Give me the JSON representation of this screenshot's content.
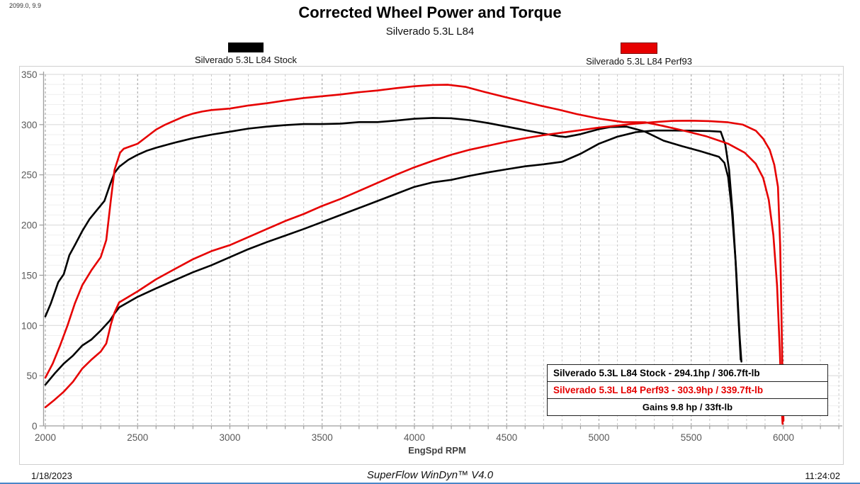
{
  "header": {
    "doc_ref": "2099.0, 9.9",
    "title": "Corrected Wheel Power and Torque",
    "subtitle": "Silverado 5.3L L84"
  },
  "legend": {
    "stock": {
      "label": "Silverado 5.3L L84 Stock",
      "color": "#000000"
    },
    "perf": {
      "label": "Silverado 5.3L L84 Perf93",
      "color": "#e60000"
    }
  },
  "chart_data": {
    "type": "line",
    "title": "Corrected Wheel Power and Torque",
    "subtitle": "Silverado 5.3L L84",
    "xlabel": "EngSpd RPM",
    "ylabel": "",
    "xlim": [
      2000,
      6000
    ],
    "ylim": [
      0,
      350
    ],
    "x_ticks": [
      2000,
      2500,
      3000,
      3500,
      4000,
      4500,
      5000,
      5500,
      6000
    ],
    "y_ticks": [
      0,
      50,
      100,
      150,
      200,
      250,
      300,
      350
    ],
    "grid": {
      "x_minor_step": 100,
      "x_major_step": 500,
      "y_minor_step": 10,
      "y_major_step": 50,
      "grid_on": true
    },
    "legend_position": "top",
    "series": [
      {
        "name": "Stock Torque (ft-lb)",
        "color": "#000000",
        "points": [
          [
            2000,
            109
          ],
          [
            2030,
            122
          ],
          [
            2070,
            143
          ],
          [
            2100,
            151
          ],
          [
            2130,
            170
          ],
          [
            2160,
            180
          ],
          [
            2200,
            194
          ],
          [
            2240,
            206
          ],
          [
            2280,
            215
          ],
          [
            2320,
            224
          ],
          [
            2350,
            240
          ],
          [
            2375,
            252
          ],
          [
            2400,
            258
          ],
          [
            2450,
            265
          ],
          [
            2500,
            270
          ],
          [
            2550,
            274
          ],
          [
            2600,
            277
          ],
          [
            2700,
            282
          ],
          [
            2800,
            286.5
          ],
          [
            2900,
            290
          ],
          [
            3000,
            293
          ],
          [
            3100,
            296
          ],
          [
            3200,
            298
          ],
          [
            3300,
            299.5
          ],
          [
            3400,
            300.5
          ],
          [
            3500,
            300.5
          ],
          [
            3600,
            301
          ],
          [
            3700,
            302.5
          ],
          [
            3800,
            302.5
          ],
          [
            3900,
            304
          ],
          [
            4000,
            305.8
          ],
          [
            4100,
            306.7
          ],
          [
            4200,
            306.3
          ],
          [
            4300,
            304.5
          ],
          [
            4400,
            301.5
          ],
          [
            4500,
            298
          ],
          [
            4600,
            294.5
          ],
          [
            4700,
            291
          ],
          [
            4780,
            288.5
          ],
          [
            4820,
            287.7
          ],
          [
            4900,
            290.5
          ],
          [
            5000,
            295.5
          ],
          [
            5060,
            297.6
          ],
          [
            5150,
            298
          ],
          [
            5250,
            293
          ],
          [
            5350,
            284
          ],
          [
            5450,
            278.5
          ],
          [
            5550,
            273.5
          ],
          [
            5650,
            268
          ],
          [
            5680,
            262
          ],
          [
            5700,
            248
          ],
          [
            5720,
            215
          ],
          [
            5740,
            165
          ],
          [
            5755,
            110
          ],
          [
            5768,
            66
          ]
        ]
      },
      {
        "name": "Stock Power (hp)",
        "color": "#000000",
        "points": [
          [
            2000,
            41
          ],
          [
            2050,
            52
          ],
          [
            2100,
            62
          ],
          [
            2150,
            70
          ],
          [
            2200,
            80
          ],
          [
            2250,
            86
          ],
          [
            2300,
            95
          ],
          [
            2350,
            105
          ],
          [
            2375,
            112
          ],
          [
            2400,
            118
          ],
          [
            2500,
            128.5
          ],
          [
            2600,
            137
          ],
          [
            2700,
            145
          ],
          [
            2800,
            153
          ],
          [
            2900,
            160
          ],
          [
            3000,
            168
          ],
          [
            3100,
            176
          ],
          [
            3200,
            183
          ],
          [
            3300,
            189.5
          ],
          [
            3400,
            196
          ],
          [
            3500,
            203
          ],
          [
            3600,
            210
          ],
          [
            3700,
            217
          ],
          [
            3800,
            224
          ],
          [
            3900,
            231
          ],
          [
            4000,
            238
          ],
          [
            4100,
            242.5
          ],
          [
            4200,
            245
          ],
          [
            4300,
            249
          ],
          [
            4400,
            252.5
          ],
          [
            4500,
            255.5
          ],
          [
            4600,
            258.5
          ],
          [
            4700,
            260.5
          ],
          [
            4800,
            263
          ],
          [
            4900,
            271
          ],
          [
            5000,
            281
          ],
          [
            5100,
            288
          ],
          [
            5200,
            292.5
          ],
          [
            5300,
            294.1
          ],
          [
            5400,
            294.1
          ],
          [
            5500,
            294
          ],
          [
            5600,
            293.6
          ],
          [
            5660,
            293
          ],
          [
            5685,
            280
          ],
          [
            5705,
            255
          ],
          [
            5725,
            210
          ],
          [
            5745,
            150
          ],
          [
            5762,
            90
          ],
          [
            5772,
            64
          ]
        ]
      },
      {
        "name": "Perf93 Torque (ft-lb)",
        "color": "#e60000",
        "points": [
          [
            2000,
            48
          ],
          [
            2040,
            62
          ],
          [
            2080,
            80
          ],
          [
            2120,
            100
          ],
          [
            2160,
            122
          ],
          [
            2200,
            140
          ],
          [
            2250,
            155
          ],
          [
            2300,
            168
          ],
          [
            2330,
            185
          ],
          [
            2355,
            225
          ],
          [
            2375,
            255
          ],
          [
            2405,
            272
          ],
          [
            2425,
            276
          ],
          [
            2500,
            281
          ],
          [
            2550,
            288
          ],
          [
            2600,
            295
          ],
          [
            2650,
            300
          ],
          [
            2700,
            304
          ],
          [
            2750,
            308
          ],
          [
            2800,
            311
          ],
          [
            2850,
            313
          ],
          [
            2900,
            314.5
          ],
          [
            3000,
            316
          ],
          [
            3100,
            319
          ],
          [
            3200,
            321.3
          ],
          [
            3300,
            324
          ],
          [
            3400,
            326.5
          ],
          [
            3500,
            328.3
          ],
          [
            3600,
            330
          ],
          [
            3700,
            332.3
          ],
          [
            3800,
            334
          ],
          [
            3900,
            336.3
          ],
          [
            4000,
            338.2
          ],
          [
            4100,
            339.5
          ],
          [
            4180,
            339.7
          ],
          [
            4280,
            337.5
          ],
          [
            4380,
            332.5
          ],
          [
            4480,
            328
          ],
          [
            4580,
            323.5
          ],
          [
            4680,
            319
          ],
          [
            4780,
            315
          ],
          [
            4880,
            310.5
          ],
          [
            5000,
            306
          ],
          [
            5130,
            302.5
          ],
          [
            5252,
            302.3
          ],
          [
            5340,
            299
          ],
          [
            5460,
            294
          ],
          [
            5580,
            288.5
          ],
          [
            5700,
            281
          ],
          [
            5790,
            272
          ],
          [
            5850,
            261
          ],
          [
            5890,
            247
          ],
          [
            5920,
            225
          ],
          [
            5945,
            190
          ],
          [
            5965,
            140
          ],
          [
            5980,
            75
          ],
          [
            5990,
            20
          ],
          [
            5995,
            2
          ]
        ]
      },
      {
        "name": "Perf93 Power (hp)",
        "color": "#e60000",
        "points": [
          [
            2000,
            18.5
          ],
          [
            2050,
            26
          ],
          [
            2100,
            34
          ],
          [
            2150,
            44
          ],
          [
            2200,
            57
          ],
          [
            2250,
            66
          ],
          [
            2300,
            74
          ],
          [
            2330,
            82
          ],
          [
            2355,
            101
          ],
          [
            2375,
            113
          ],
          [
            2400,
            123
          ],
          [
            2500,
            134
          ],
          [
            2600,
            146
          ],
          [
            2700,
            156
          ],
          [
            2800,
            166
          ],
          [
            2900,
            174
          ],
          [
            3000,
            180
          ],
          [
            3100,
            188
          ],
          [
            3200,
            196
          ],
          [
            3300,
            204
          ],
          [
            3400,
            211
          ],
          [
            3500,
            219
          ],
          [
            3600,
            226
          ],
          [
            3700,
            234
          ],
          [
            3800,
            242
          ],
          [
            3900,
            250
          ],
          [
            4000,
            257.5
          ],
          [
            4100,
            264
          ],
          [
            4200,
            270
          ],
          [
            4300,
            275
          ],
          [
            4400,
            279
          ],
          [
            4500,
            283
          ],
          [
            4600,
            286.5
          ],
          [
            4700,
            289.5
          ],
          [
            4800,
            292
          ],
          [
            4900,
            294.5
          ],
          [
            5000,
            297
          ],
          [
            5100,
            299
          ],
          [
            5200,
            301
          ],
          [
            5300,
            302.5
          ],
          [
            5400,
            303.7
          ],
          [
            5500,
            303.9
          ],
          [
            5600,
            303.5
          ],
          [
            5700,
            302.3
          ],
          [
            5780,
            300
          ],
          [
            5850,
            294
          ],
          [
            5890,
            286
          ],
          [
            5925,
            275
          ],
          [
            5950,
            260
          ],
          [
            5970,
            238
          ],
          [
            5982,
            180
          ],
          [
            5990,
            100
          ],
          [
            5996,
            30
          ],
          [
            6000,
            5
          ]
        ]
      }
    ]
  },
  "info_box": {
    "rows": [
      {
        "text": "Silverado 5.3L L84 Stock - 294.1hp / 306.7ft-lb"
      },
      {
        "text": "Silverado 5.3L L84 Perf93 - 303.9hp / 339.7ft-lb"
      },
      {
        "text": "Gains 9.8 hp / 33ft-lb"
      }
    ]
  },
  "footer": {
    "date": "1/18/2023",
    "software": "SuperFlow WinDyn™ V4.0",
    "time": "11:24:02"
  }
}
